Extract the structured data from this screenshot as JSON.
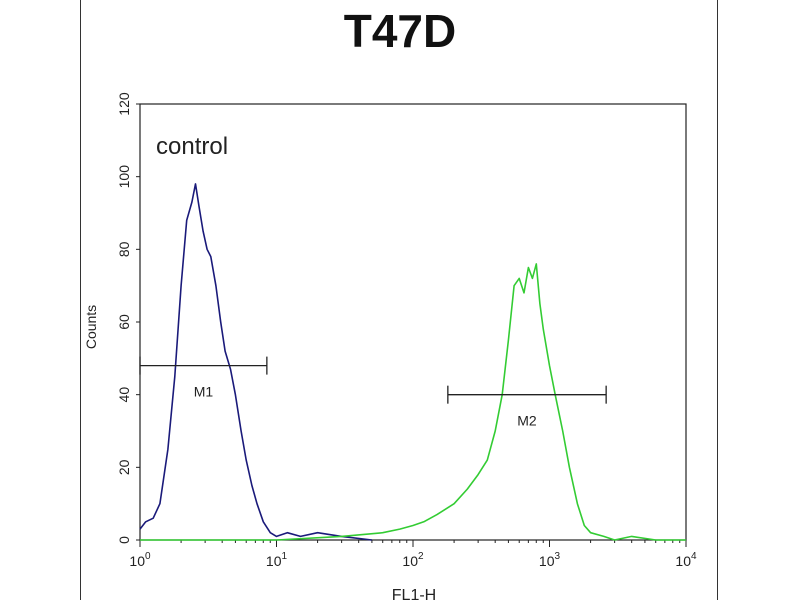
{
  "chart_data": {
    "type": "line",
    "title": "T47D",
    "xlabel": "FL1-H",
    "ylabel": "Counts",
    "x_scale": "log",
    "xlim": [
      1,
      10000
    ],
    "ylim": [
      0,
      120
    ],
    "x_ticks": [
      {
        "value": 1,
        "base": "10",
        "exp": "0"
      },
      {
        "value": 10,
        "base": "10",
        "exp": "1"
      },
      {
        "value": 100,
        "base": "10",
        "exp": "2"
      },
      {
        "value": 1000,
        "base": "10",
        "exp": "3"
      },
      {
        "value": 10000,
        "base": "10",
        "exp": "4"
      }
    ],
    "y_ticks": [
      0,
      20,
      40,
      60,
      80,
      100,
      120
    ],
    "annotation": "control",
    "grid": false,
    "series": [
      {
        "color": "#1a1a7a",
        "x": [
          1.0,
          1.1,
          1.25,
          1.4,
          1.6,
          1.8,
          2.0,
          2.2,
          2.4,
          2.55,
          2.7,
          2.9,
          3.1,
          3.3,
          3.6,
          3.9,
          4.2,
          4.6,
          5.0,
          5.5,
          6.0,
          6.6,
          7.2,
          8.0,
          9.0,
          10,
          12,
          15,
          20,
          30,
          50
        ],
        "y": [
          3,
          5,
          6,
          10,
          25,
          45,
          70,
          88,
          93,
          98,
          92,
          85,
          80,
          78,
          70,
          60,
          52,
          47,
          40,
          30,
          22,
          15,
          10,
          5,
          2,
          1,
          2,
          1,
          2,
          1,
          0
        ]
      },
      {
        "color": "#33cc33",
        "x": [
          1,
          10,
          30,
          60,
          80,
          100,
          120,
          150,
          200,
          250,
          300,
          350,
          400,
          450,
          500,
          550,
          600,
          650,
          700,
          750,
          800,
          850,
          900,
          1000,
          1100,
          1250,
          1400,
          1600,
          1800,
          2000,
          2500,
          3000,
          4000,
          6000,
          10000
        ],
        "y": [
          0,
          0,
          1,
          2,
          3,
          4,
          5,
          7,
          10,
          14,
          18,
          22,
          30,
          40,
          55,
          70,
          72,
          68,
          75,
          72,
          76,
          65,
          58,
          48,
          40,
          30,
          20,
          10,
          4,
          2,
          1,
          0,
          1,
          0,
          0
        ]
      }
    ],
    "markers": [
      {
        "label": "M1",
        "x_start": 1.0,
        "x_end": 8.5,
        "y": 48
      },
      {
        "label": "M2",
        "x_start": 180,
        "x_end": 2600,
        "y": 40
      }
    ]
  }
}
